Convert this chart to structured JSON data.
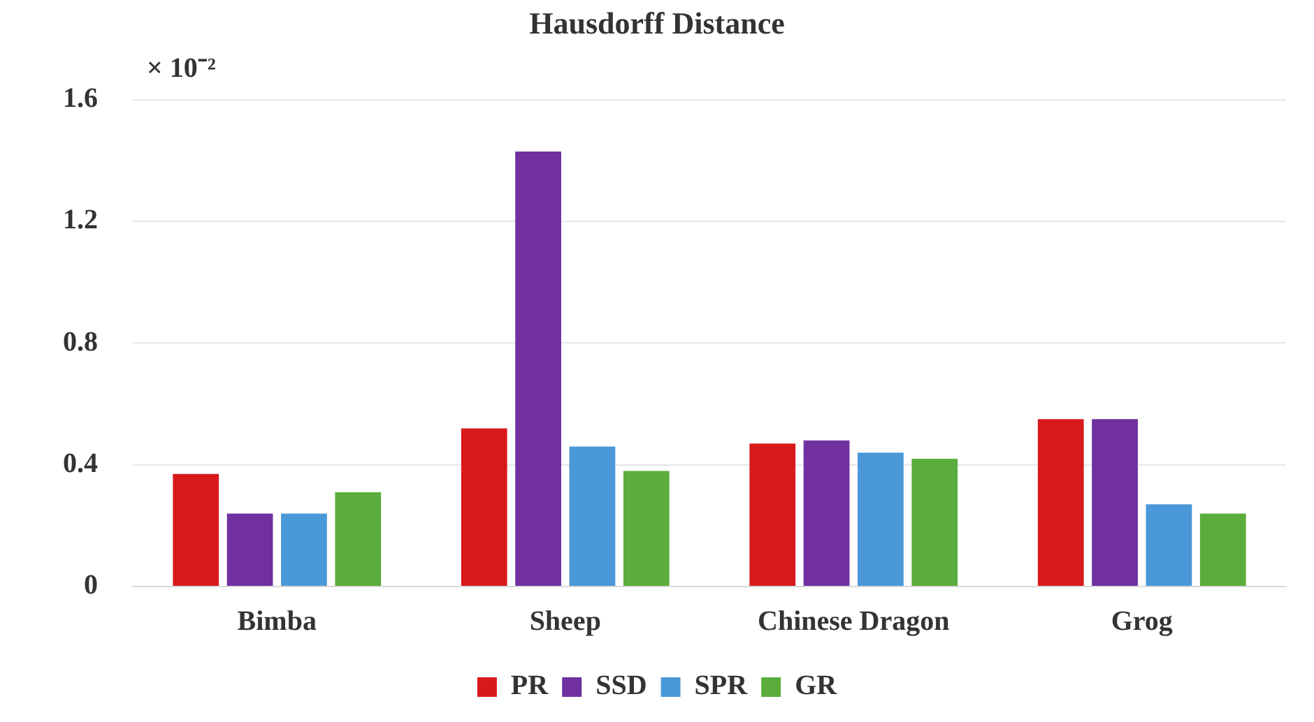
{
  "chart_data": {
    "type": "bar",
    "title": "Hausdorff Distance",
    "annotations": [
      "× 10⁻²"
    ],
    "categories": [
      "Bimba",
      "Sheep",
      "Chinese Dragon",
      "Grog"
    ],
    "series": [
      {
        "name": "PR",
        "color": "#d7191c",
        "values": [
          0.37,
          0.52,
          0.47,
          0.55
        ]
      },
      {
        "name": "SSD",
        "color": "#7030a0",
        "values": [
          0.24,
          1.43,
          0.48,
          0.55
        ]
      },
      {
        "name": "SPR",
        "color": "#4a98d8",
        "values": [
          0.24,
          0.46,
          0.44,
          0.27
        ]
      },
      {
        "name": "GR",
        "color": "#5aad3c",
        "values": [
          0.31,
          0.38,
          0.42,
          0.24
        ]
      }
    ],
    "ylim": [
      0,
      1.6
    ],
    "yticks": [
      0,
      {
        "value": 0.4,
        "label": "0.4"
      },
      {
        "value": 0.8,
        "label": "0.8"
      },
      {
        "value": 1.2,
        "label": "1.2"
      },
      {
        "value": 1.6,
        "label": "1.6"
      }
    ],
    "grid": "y",
    "legend": "bottom"
  }
}
